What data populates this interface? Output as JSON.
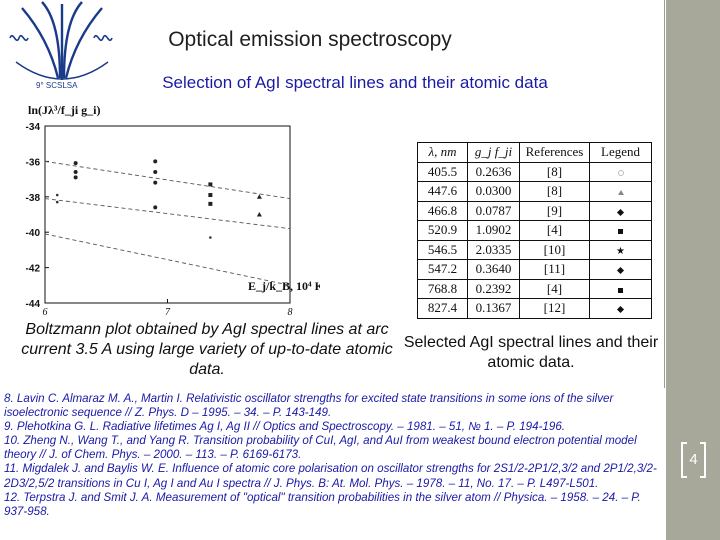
{
  "logo_text": "9° SCSLSA",
  "title": "Optical emission spectroscopy",
  "subtitle": "Selection of AgI spectral lines and their atomic data",
  "chart_data": {
    "type": "scatter",
    "title": "",
    "ylabel": "ln(Jλ³/f_ji g_i)",
    "xlabel": "E_j/k_B, 10⁴ K",
    "xlim": [
      6,
      8
    ],
    "ylim": [
      -44,
      -34
    ],
    "ytick_labels": [
      "-34",
      "-36",
      "-38",
      "-40",
      "-42",
      "-44"
    ],
    "xtick_labels": [
      "6",
      "7",
      "8"
    ],
    "series": [
      {
        "marker": "circle-cluster",
        "x": [
          6.25,
          6.25,
          6.25
        ],
        "y": [
          -36.1,
          -36.6,
          -36.9
        ]
      },
      {
        "marker": "circle-cluster",
        "x": [
          6.9,
          6.9,
          6.9,
          6.9
        ],
        "y": [
          -36.0,
          -36.6,
          -37.2,
          -38.6
        ]
      },
      {
        "marker": "square-cluster",
        "x": [
          7.35,
          7.35,
          7.35
        ],
        "y": [
          -37.3,
          -37.9,
          -38.4
        ]
      },
      {
        "marker": "triangle",
        "x": [
          7.75,
          7.75
        ],
        "y": [
          -38.0,
          -39.0
        ]
      },
      {
        "marker": "dot",
        "x": [
          6.1,
          6.1
        ],
        "y": [
          -37.9,
          -38.3
        ]
      },
      {
        "marker": "dot",
        "x": [
          7.35
        ],
        "y": [
          -40.3
        ]
      }
    ],
    "fit_lines": [
      {
        "x": [
          6.0,
          8.0
        ],
        "y": [
          -36.0,
          -38.1
        ]
      },
      {
        "x": [
          6.0,
          8.0
        ],
        "y": [
          -38.1,
          -39.8
        ]
      },
      {
        "x": [
          6.0,
          8.0
        ],
        "y": [
          -40.1,
          -43.0
        ]
      }
    ]
  },
  "left_caption": "Boltzmann plot obtained by AgI spectral lines at arc current 3.5 A using large variety of up-to-date atomic data.",
  "table": {
    "headers": [
      "λ, nm",
      "g_j f_ji",
      "References",
      "Legend"
    ],
    "rows": [
      {
        "wavelength": "405.5",
        "gf": "0.2636",
        "ref": "[8]",
        "legend": "circle"
      },
      {
        "wavelength": "447.6",
        "gf": "0.0300",
        "ref": "[8]",
        "legend": "triangle"
      },
      {
        "wavelength": "466.8",
        "gf": "0.0787",
        "ref": "[9]",
        "legend": "diamond"
      },
      {
        "wavelength": "520.9",
        "gf": "1.0902",
        "ref": "[4]",
        "legend": "square"
      },
      {
        "wavelength": "546.5",
        "gf": "2.0335",
        "ref": "[10]",
        "legend": "star"
      },
      {
        "wavelength": "547.2",
        "gf": "0.3640",
        "ref": "[11]",
        "legend": "diamond"
      },
      {
        "wavelength": "768.8",
        "gf": "0.2392",
        "ref": "[4]",
        "legend": "square"
      },
      {
        "wavelength": "827.4",
        "gf": "0.1367",
        "ref": "[12]",
        "legend": "diamond"
      }
    ]
  },
  "right_caption": "Selected AgI spectral lines and their atomic data.",
  "references": [
    "8. Lavin C. Almaraz M. A., Martin I. Relativistic oscillator strengths for excited state transitions in some ions of the silver isoelectronic sequence // Z. Phys. D – 1995. – 34. – P. 143-149.",
    "9. Plehotkina G. L. Radiative lifetimes Ag I, Ag II // Optics and Spectroscopy. – 1981. – 51, № 1. – P. 194-196.",
    "10. Zheng N., Wang T., and Yang R. Transition probability of CuI, AgI, and AuI from weakest bound electron potential model theory // J. of Chem. Phys. – 2000. – 113. – P. 6169-6173.",
    "11. Migdalek J. and Baylis W. E. Influence of atomic core polarisation on oscillator strengths for 2S1/2-2P1/2,3/2 and 2P1/2,3/2-2D3/2,5/2 transitions in Cu I, Ag I and Au I spectra // J. Phys. B: At. Mol. Phys. – 1978. – 11, No. 17. – P. L497-L501.",
    "12. Terpstra J. and Smit J. A. Measurement of \"optical\" transition probabilities in the silver atom // Physica. – 1958. – 24. – P. 937-958."
  ],
  "slide_number": "4",
  "colors": {
    "title": "#1f1f1f",
    "subtitle": "#1a1aa8",
    "references": "#1a1aa8",
    "side_band": "#a8a89a"
  }
}
